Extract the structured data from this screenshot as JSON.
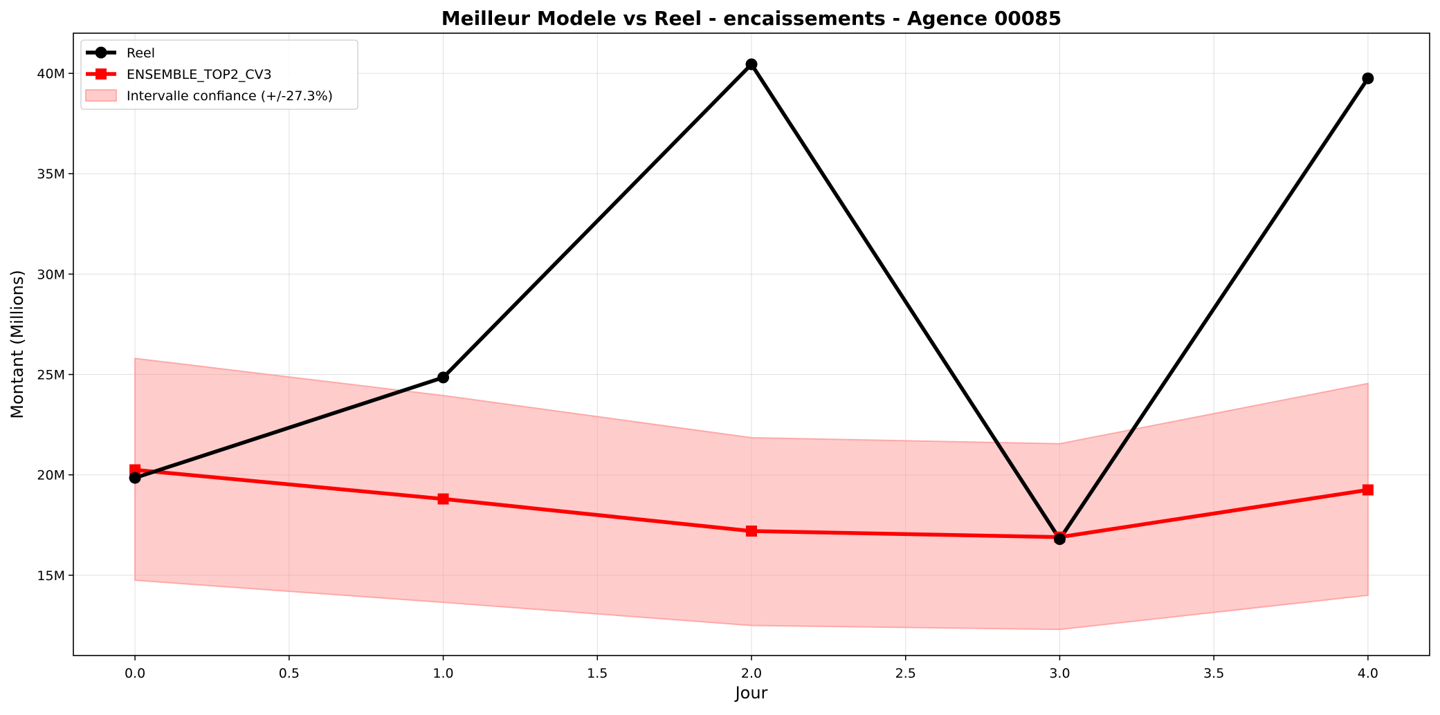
{
  "chart_data": {
    "type": "line",
    "title": "Meilleur Modele vs Reel - encaissements - Agence 00085",
    "xlabel": "Jour",
    "ylabel": "Montant (Millions)",
    "xlim": [
      -0.2,
      4.2
    ],
    "ylim": [
      11.0,
      42.0
    ],
    "x_ticks": [
      0.0,
      0.5,
      1.0,
      1.5,
      2.0,
      2.5,
      3.0,
      3.5,
      4.0
    ],
    "x_tick_labels": [
      "0.0",
      "0.5",
      "1.0",
      "1.5",
      "2.0",
      "2.5",
      "3.0",
      "3.5",
      "4.0"
    ],
    "y_ticks": [
      15,
      20,
      25,
      30,
      35,
      40
    ],
    "y_tick_labels": [
      "15M",
      "20M",
      "25M",
      "30M",
      "35M",
      "40M"
    ],
    "grid": true,
    "legend_position": "top-left",
    "x": [
      0,
      1,
      2,
      3,
      4
    ],
    "series": [
      {
        "name": "Reel",
        "values": [
          19.85,
          24.85,
          40.45,
          16.8,
          39.75
        ],
        "color": "#000000",
        "marker": "circle"
      },
      {
        "name": "ENSEMBLE_TOP2_CV3",
        "values": [
          20.25,
          18.8,
          17.2,
          16.9,
          19.25
        ],
        "color": "#ff0000",
        "marker": "square"
      }
    ],
    "confidence_band": {
      "name": "Intervalle confiance (+/-27.3%)",
      "lower": [
        14.75,
        13.65,
        12.5,
        12.3,
        14.0
      ],
      "upper": [
        25.8,
        23.95,
        21.85,
        21.55,
        24.55
      ],
      "color": "#ff9999"
    }
  }
}
